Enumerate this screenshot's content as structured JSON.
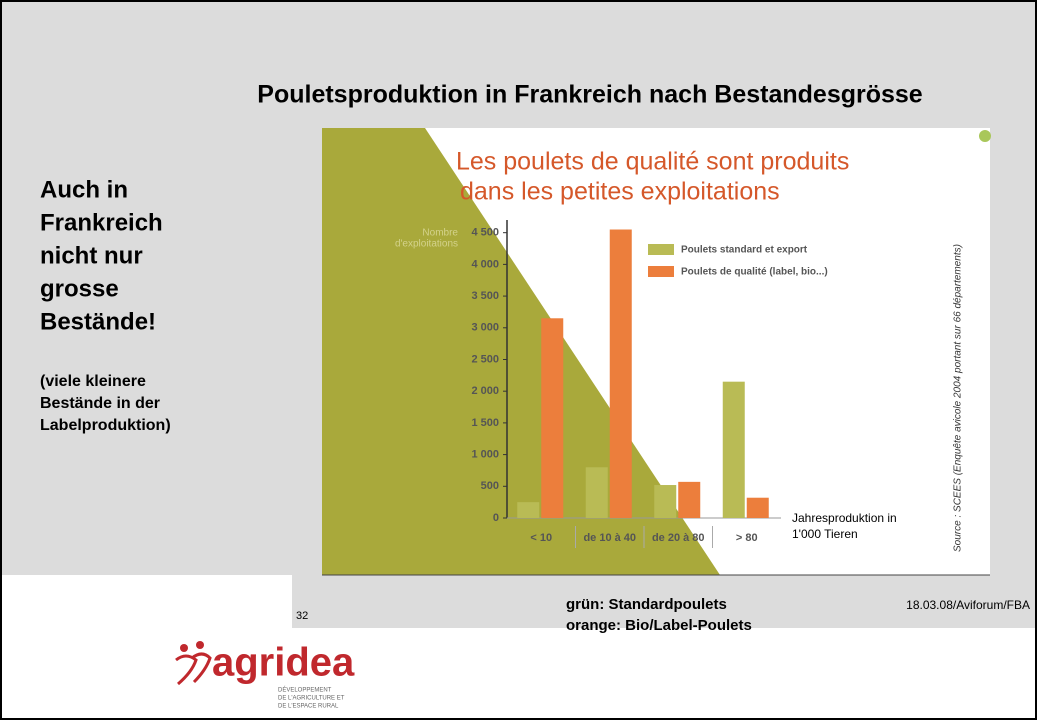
{
  "slide": {
    "title": "Pouletsproduktion in Frankreich nach Bestandesgrösse",
    "headline_lines": [
      "Auch in",
      "Frankreich",
      "nicht nur",
      "grosse",
      "Bestände!"
    ],
    "note_lines": [
      "(viele kleinere",
      "Bestände in der",
      "Labelproduktion)"
    ],
    "page_number": "32",
    "legend_note": [
      "grün: Standardpoulets",
      "orange: Bio/Label-Poulets"
    ],
    "footer": "18.03.08/Aviforum/FBA",
    "logo": {
      "name": "agridea",
      "tagline_lines": [
        "DÉVELOPPEMENT",
        "DE L'AGRICULTURE ET",
        "DE L'ESPACE RURAL"
      ]
    }
  },
  "chart_data": {
    "type": "bar",
    "title_lines": [
      "Les poulets de qualité sont produits",
      "dans les petites exploitations"
    ],
    "ylabel_lines": [
      "Nombre",
      "d'exploitations"
    ],
    "xlabel_lines": [
      "Jahresproduktion in",
      "1'000 Tieren"
    ],
    "source": "Source : SCEES (Enquête avicole 2004 portant sur 66 départements)",
    "categories": [
      "< 10",
      "de 10 à 40",
      "de 20 à 80",
      "> 80"
    ],
    "series": [
      {
        "name": "Poulets standard et export",
        "color": "#b9bb55",
        "values": [
          250,
          800,
          520,
          2150
        ]
      },
      {
        "name": "Poulets de qualité (label, bio...)",
        "color": "#ec7e3c",
        "values": [
          3150,
          4550,
          570,
          320
        ]
      }
    ],
    "ylim": [
      0,
      4700
    ],
    "yticks": [
      0,
      500,
      {
        "value": 1000,
        "label": "1 000"
      },
      {
        "value": 1500,
        "label": "1 500"
      },
      {
        "value": 2000,
        "label": "2 000"
      },
      {
        "value": 2500,
        "label": "2 500"
      },
      {
        "value": 3000,
        "label": "3 000"
      },
      {
        "value": 3500,
        "label": "3 500"
      },
      {
        "value": 4000,
        "label": "4 000"
      },
      {
        "value": 4500,
        "label": "4 500"
      }
    ],
    "legend": "upper right"
  }
}
